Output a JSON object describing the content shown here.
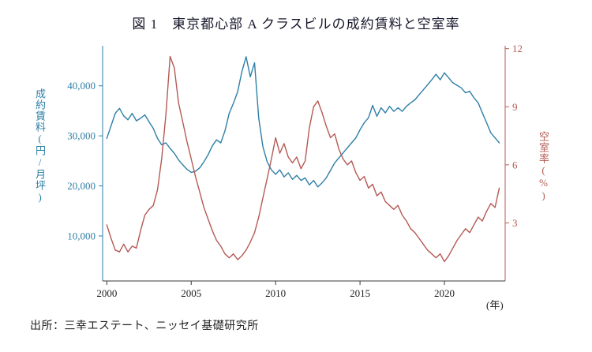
{
  "source": "出所：三幸エステート、ニッセイ基礎研究所",
  "chart_data": {
    "type": "line",
    "title": "図 1　東京都心部 A クラスビルの成約賃料と空室率",
    "x_unit_label": "(年)",
    "xlim": [
      1999.75,
      2023.6
    ],
    "x_ticks": [
      2000,
      2005,
      2010,
      2015,
      2020
    ],
    "x_tick_labels": [
      "2000",
      "2005",
      "2010",
      "2015",
      "2020"
    ],
    "x_start": 2000.0,
    "x_step": 0.25,
    "grid": false,
    "legend": "none",
    "left_axis": {
      "label": "成約賃料(円/月坪)",
      "color": "#2e7fa6",
      "ticks": [
        10000,
        20000,
        30000,
        40000
      ],
      "tick_labels": [
        "10,000",
        "20,000",
        "30,000",
        "40,000"
      ],
      "ylim": [
        1000,
        48000
      ]
    },
    "right_axis": {
      "label": "空室率(%)",
      "color": "#b45a54",
      "ticks": [
        3,
        6,
        9,
        12
      ],
      "tick_labels": [
        "3",
        "6",
        "9",
        "12"
      ],
      "ylim": [
        0,
        12.15
      ]
    },
    "series": [
      {
        "name": "成約賃料",
        "axis": "left",
        "color": "#2e7fa6",
        "values": [
          29500,
          32000,
          34500,
          35500,
          34000,
          33200,
          34500,
          33000,
          33500,
          34200,
          32800,
          31500,
          29500,
          28200,
          28600,
          27500,
          26500,
          25200,
          24200,
          23300,
          22700,
          22900,
          23600,
          24800,
          26200,
          28000,
          29200,
          28600,
          31000,
          34500,
          36500,
          38800,
          42800,
          45800,
          41800,
          44600,
          33500,
          27800,
          24800,
          23200,
          22300,
          23200,
          21800,
          22600,
          21300,
          22100,
          21100,
          21600,
          20200,
          21100,
          19800,
          20600,
          21600,
          23100,
          24600,
          25600,
          26600,
          27600,
          28600,
          29600,
          31200,
          32600,
          33600,
          36100,
          33900,
          35600,
          34600,
          35900,
          34900,
          35600,
          34900,
          35900,
          36600,
          37200,
          38200,
          39200,
          40200,
          41200,
          42300,
          41200,
          42600,
          41600,
          40600,
          40100,
          39600,
          38600,
          38900,
          37600,
          36600,
          34600,
          32600,
          30600,
          29600,
          28600
        ]
      },
      {
        "name": "空室率",
        "axis": "right",
        "color": "#b45a54",
        "values": [
          2.9,
          2.2,
          1.6,
          1.5,
          1.9,
          1.5,
          1.8,
          1.7,
          2.6,
          3.4,
          3.7,
          3.9,
          4.7,
          6.3,
          8.6,
          11.6,
          11.0,
          9.2,
          8.2,
          7.2,
          6.3,
          5.4,
          4.6,
          3.8,
          3.2,
          2.6,
          2.1,
          1.8,
          1.4,
          1.2,
          1.4,
          1.1,
          1.3,
          1.6,
          2.0,
          2.5,
          3.3,
          4.3,
          5.3,
          6.3,
          7.4,
          6.6,
          7.1,
          6.4,
          6.1,
          6.4,
          5.8,
          6.2,
          7.9,
          9.0,
          9.3,
          8.7,
          8.0,
          7.4,
          7.6,
          6.8,
          6.3,
          6.0,
          6.2,
          5.6,
          5.2,
          5.4,
          4.8,
          5.0,
          4.4,
          4.6,
          4.1,
          3.9,
          3.7,
          3.9,
          3.4,
          3.1,
          2.7,
          2.5,
          2.2,
          1.9,
          1.6,
          1.4,
          1.2,
          1.4,
          1.0,
          1.3,
          1.7,
          2.1,
          2.4,
          2.7,
          2.5,
          2.9,
          3.3,
          3.1,
          3.6,
          4.0,
          3.8,
          4.8
        ]
      }
    ]
  }
}
